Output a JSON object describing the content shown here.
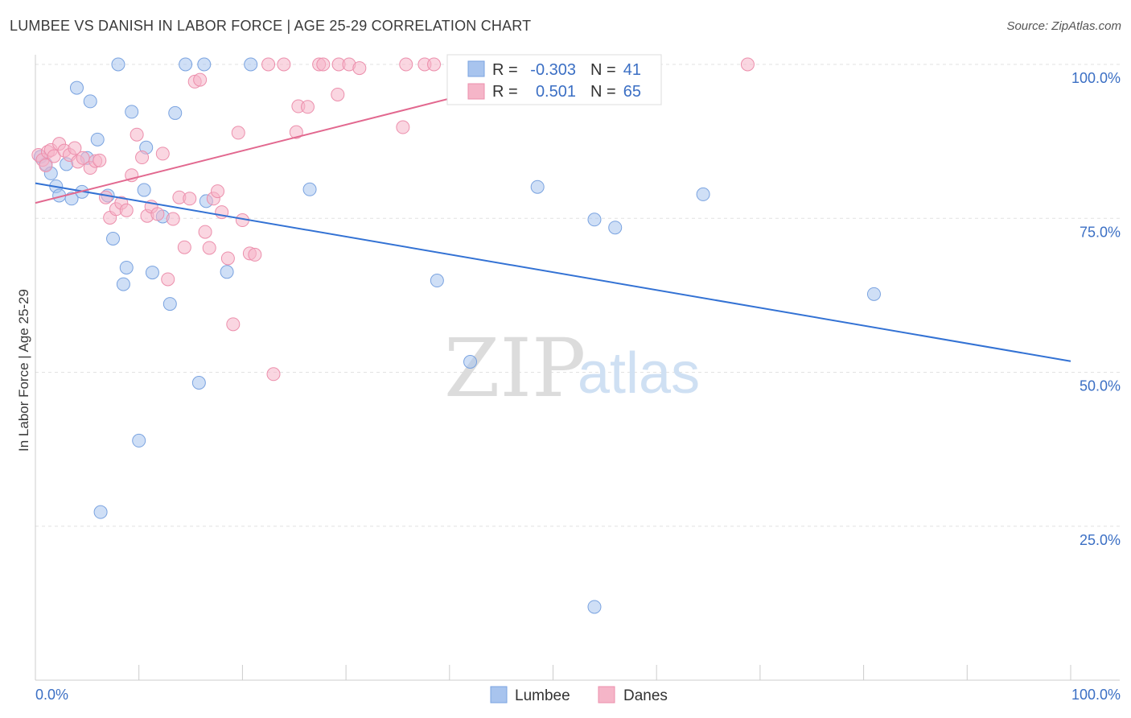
{
  "header": {
    "title": "LUMBEE VS DANISH IN LABOR FORCE | AGE 25-29 CORRELATION CHART",
    "source": "Source: ZipAtlas.com"
  },
  "watermark": {
    "zip": "ZIP",
    "atlas": "atlas"
  },
  "stats": {
    "rows": [
      {
        "r_label": "R =",
        "r_value": "-0.303",
        "n_label": "N =",
        "n_value": "41",
        "color": "#a8c4ee"
      },
      {
        "r_label": "R =",
        "r_value": "0.501",
        "n_label": "N =",
        "n_value": "65",
        "color": "#f5b5c8"
      }
    ]
  },
  "chart_data": {
    "type": "scatter",
    "title": "LUMBEE VS DANISH IN LABOR FORCE | AGE 25-29 CORRELATION CHART",
    "xlabel": "",
    "ylabel": "In Labor Force | Age 25-29",
    "xlim": [
      0,
      100
    ],
    "ylim": [
      0,
      105
    ],
    "x_tick_labels": [
      "0.0%",
      "100.0%"
    ],
    "y_ticks": [
      {
        "value": 25,
        "label": "25.0%"
      },
      {
        "value": 50,
        "label": "50.0%"
      },
      {
        "value": 75,
        "label": "75.0%"
      },
      {
        "value": 100,
        "label": "100.0%"
      }
    ],
    "grid": true,
    "legend_position": "bottom-center",
    "series": [
      {
        "name": "Lumbee",
        "color": "#a8c4ee",
        "stroke": "#7aa3e0",
        "trend_color": "#3372d4",
        "trend": {
          "x0": 0,
          "y0": 80.7,
          "x1": 100,
          "y1": 51.8
        },
        "points": [
          [
            0.5,
            85.0
          ],
          [
            1.0,
            83.8
          ],
          [
            1.5,
            82.3
          ],
          [
            2.0,
            80.2
          ],
          [
            2.3,
            78.7
          ],
          [
            3.0,
            83.8
          ],
          [
            3.5,
            78.2
          ],
          [
            4.0,
            96.2
          ],
          [
            4.5,
            79.3
          ],
          [
            5.0,
            84.8
          ],
          [
            5.3,
            94.0
          ],
          [
            6.0,
            87.8
          ],
          [
            7.0,
            78.7
          ],
          [
            7.5,
            71.7
          ],
          [
            8.0,
            100.0
          ],
          [
            8.5,
            64.3
          ],
          [
            8.8,
            67.0
          ],
          [
            9.3,
            92.3
          ],
          [
            10.0,
            38.9
          ],
          [
            10.5,
            79.6
          ],
          [
            10.7,
            86.5
          ],
          [
            11.3,
            66.2
          ],
          [
            12.3,
            75.3
          ],
          [
            13.0,
            61.1
          ],
          [
            13.5,
            92.1
          ],
          [
            14.5,
            100.0
          ],
          [
            15.8,
            48.3
          ],
          [
            16.3,
            100.0
          ],
          [
            16.5,
            77.8
          ],
          [
            18.5,
            66.3
          ],
          [
            20.8,
            100.0
          ],
          [
            26.5,
            79.7
          ],
          [
            38.8,
            64.9
          ],
          [
            42.0,
            51.7
          ],
          [
            48.5,
            80.1
          ],
          [
            54.0,
            74.8
          ],
          [
            56.0,
            73.5
          ],
          [
            64.5,
            78.9
          ],
          [
            81.0,
            62.7
          ],
          [
            6.3,
            27.3
          ],
          [
            54.0,
            11.9
          ]
        ]
      },
      {
        "name": "Danes",
        "color": "#f5b5c8",
        "stroke": "#ec8fac",
        "trend_color": "#e2688f",
        "trend": {
          "x0": 0,
          "y0": 77.5,
          "x1": 55,
          "y1": 100.8
        },
        "points": [
          [
            0.3,
            85.3
          ],
          [
            0.7,
            84.5
          ],
          [
            1.0,
            83.6
          ],
          [
            1.2,
            85.8
          ],
          [
            1.5,
            86.1
          ],
          [
            1.8,
            85.1
          ],
          [
            2.3,
            87.1
          ],
          [
            2.8,
            86.0
          ],
          [
            3.3,
            85.3
          ],
          [
            3.8,
            86.4
          ],
          [
            4.1,
            84.2
          ],
          [
            4.6,
            84.8
          ],
          [
            5.3,
            83.2
          ],
          [
            5.8,
            84.3
          ],
          [
            6.2,
            84.4
          ],
          [
            6.8,
            78.4
          ],
          [
            7.2,
            75.1
          ],
          [
            7.8,
            76.5
          ],
          [
            8.3,
            77.5
          ],
          [
            8.8,
            76.3
          ],
          [
            9.3,
            82.0
          ],
          [
            9.8,
            88.6
          ],
          [
            10.3,
            84.9
          ],
          [
            10.8,
            75.4
          ],
          [
            11.2,
            76.9
          ],
          [
            11.8,
            75.7
          ],
          [
            12.3,
            85.5
          ],
          [
            12.8,
            65.1
          ],
          [
            13.3,
            74.9
          ],
          [
            13.9,
            78.4
          ],
          [
            14.4,
            70.3
          ],
          [
            14.9,
            78.2
          ],
          [
            15.4,
            97.2
          ],
          [
            15.9,
            97.5
          ],
          [
            16.4,
            72.8
          ],
          [
            16.8,
            70.2
          ],
          [
            17.2,
            78.2
          ],
          [
            17.6,
            79.4
          ],
          [
            18.0,
            76.0
          ],
          [
            18.6,
            68.5
          ],
          [
            19.1,
            57.8
          ],
          [
            19.6,
            88.9
          ],
          [
            20.0,
            74.7
          ],
          [
            20.7,
            69.3
          ],
          [
            21.2,
            69.1
          ],
          [
            22.5,
            100.0
          ],
          [
            23.0,
            49.7
          ],
          [
            24.0,
            100.0
          ],
          [
            25.2,
            89.0
          ],
          [
            25.4,
            93.2
          ],
          [
            26.3,
            93.1
          ],
          [
            27.4,
            100.0
          ],
          [
            27.8,
            100.0
          ],
          [
            29.2,
            95.1
          ],
          [
            29.3,
            100.0
          ],
          [
            30.3,
            100.0
          ],
          [
            31.3,
            99.4
          ],
          [
            35.5,
            89.8
          ],
          [
            35.8,
            100.0
          ],
          [
            37.6,
            100.0
          ],
          [
            41.0,
            100.0
          ],
          [
            48.5,
            100.0
          ],
          [
            53.8,
            100.0
          ],
          [
            68.8,
            100.0
          ],
          [
            38.5,
            100.0
          ]
        ]
      }
    ]
  },
  "legend": {
    "items": [
      {
        "label": "Lumbee",
        "color": "#a8c4ee"
      },
      {
        "label": "Danes",
        "color": "#f5b5c8"
      }
    ]
  }
}
